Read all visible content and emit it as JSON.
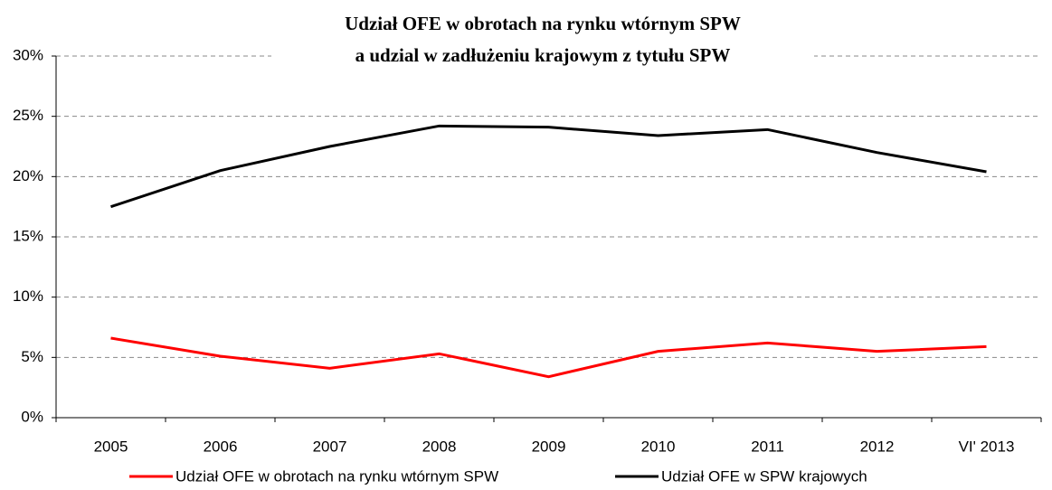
{
  "chart_data": {
    "type": "line",
    "title": [
      "Udział OFE w obrotach na rynku wtórnym SPW",
      "a udzial w zadłużeniu krajowym z tytułu SPW"
    ],
    "categories": [
      "2005",
      "2006",
      "2007",
      "2008",
      "2009",
      "2010",
      "2011",
      "2012",
      "VI' 2013"
    ],
    "series": [
      {
        "name": "Udział OFE w obrotach na rynku wtórnym SPW",
        "color": "#ff0000",
        "values": [
          6.6,
          5.1,
          4.1,
          5.3,
          3.4,
          5.5,
          6.2,
          5.5,
          5.9
        ]
      },
      {
        "name": "Udział OFE w SPW krajowych",
        "color": "#000000",
        "values": [
          17.5,
          20.5,
          22.5,
          24.2,
          24.1,
          23.4,
          23.9,
          22.0,
          20.4
        ]
      }
    ],
    "ylim": [
      0,
      30
    ],
    "yticks": [
      {
        "value": 0,
        "label": "0%"
      },
      {
        "value": 5,
        "label": "5%"
      },
      {
        "value": 10,
        "label": "10%"
      },
      {
        "value": 15,
        "label": "15%"
      },
      {
        "value": 20,
        "label": "20%"
      },
      {
        "value": 25,
        "label": "25%"
      },
      {
        "value": 30,
        "label": "30%"
      }
    ],
    "grid": true,
    "legend": "bottom"
  }
}
